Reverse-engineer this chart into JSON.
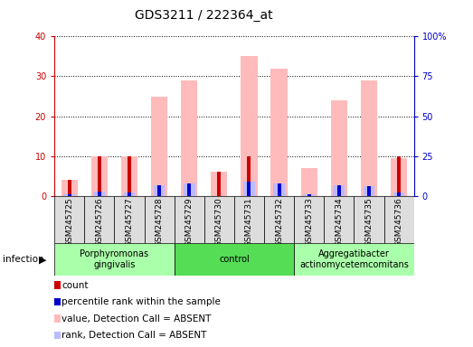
{
  "title": "GDS3211 / 222364_at",
  "samples": [
    "GSM245725",
    "GSM245726",
    "GSM245727",
    "GSM245728",
    "GSM245729",
    "GSM245730",
    "GSM245731",
    "GSM245732",
    "GSM245733",
    "GSM245734",
    "GSM245735",
    "GSM245736"
  ],
  "count_values": [
    4,
    10,
    10,
    0,
    0,
    6,
    10,
    0,
    0,
    0,
    0,
    10
  ],
  "percentile_values": [
    1,
    3,
    2,
    7,
    8,
    0,
    9,
    8,
    1,
    7,
    6,
    2
  ],
  "absent_value_values": [
    4,
    10,
    10,
    25,
    29,
    6,
    35,
    32,
    7,
    24,
    29,
    9.5
  ],
  "absent_rank_values": [
    1,
    3,
    2,
    7,
    8,
    0,
    9,
    8,
    1,
    7,
    6,
    2
  ],
  "groups": [
    {
      "label": "Porphyromonas\ngingivalis",
      "start": 0,
      "end": 4,
      "color": "#aaffaa"
    },
    {
      "label": "control",
      "start": 4,
      "end": 8,
      "color": "#55dd55"
    },
    {
      "label": "Aggregatibacter\nactinomycetemcomitans",
      "start": 8,
      "end": 12,
      "color": "#aaffaa"
    }
  ],
  "group_label": "infection",
  "ylim_left": [
    0,
    40
  ],
  "ylim_right": [
    0,
    100
  ],
  "yticks_left": [
    0,
    10,
    20,
    30,
    40
  ],
  "yticks_right": [
    0,
    25,
    50,
    75,
    100
  ],
  "yticklabels_right": [
    "0",
    "25",
    "50",
    "75",
    "100%"
  ],
  "left_color": "#cc0000",
  "right_color": "#0000cc",
  "bar_color_count": "#cc0000",
  "bar_color_percentile": "#0000cc",
  "bar_color_absent_value": "#ffbbbb",
  "bar_color_absent_rank": "#bbbbff",
  "background_color": "#ffffff",
  "plot_bg": "#ffffff",
  "grid_color": "#000000",
  "tick_box_color": "#dddddd",
  "title_fontsize": 10,
  "tick_fontsize": 7,
  "legend_fontsize": 8
}
